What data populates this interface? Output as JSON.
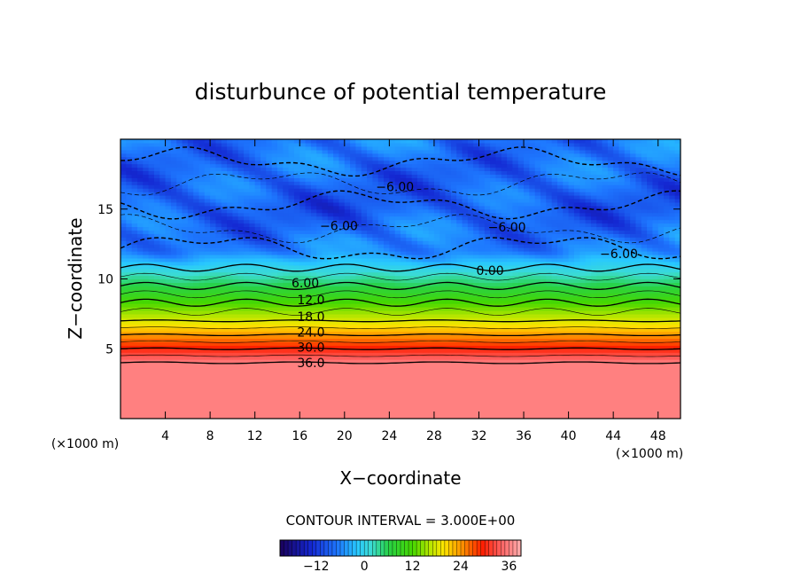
{
  "chart_data": {
    "type": "heatmap",
    "title": "disturbunce of potential temperature",
    "xlabel": "X−coordinate",
    "ylabel": "Z−coordinate",
    "x_unit": "(×1000 m)",
    "y_unit": "(×1000 m)",
    "xlim": [
      0,
      50
    ],
    "ylim": [
      0,
      20
    ],
    "x_ticks": [
      4,
      8,
      12,
      16,
      20,
      24,
      28,
      32,
      36,
      40,
      44,
      48
    ],
    "y_ticks": [
      5,
      10,
      15
    ],
    "contour_interval_text": "CONTOUR INTERVAL = 3.000E+00",
    "contour_interval": 3,
    "contour_labels": [
      {
        "text": "−6.00",
        "x": 24.5,
        "z": 16.6
      },
      {
        "text": "−6.00",
        "x": 19.5,
        "z": 13.8
      },
      {
        "text": "−6.00",
        "x": 34.5,
        "z": 13.7
      },
      {
        "text": "−6.00",
        "x": 44.5,
        "z": 11.8
      },
      {
        "text": "0.00",
        "x": 33.0,
        "z": 10.6
      },
      {
        "text": "6.00",
        "x": 16.5,
        "z": 9.7
      },
      {
        "text": "12.0",
        "x": 17.0,
        "z": 8.5
      },
      {
        "text": "18.0",
        "x": 17.0,
        "z": 7.3
      },
      {
        "text": "24.0",
        "x": 17.0,
        "z": 6.2
      },
      {
        "text": "30.0",
        "x": 17.0,
        "z": 5.1
      },
      {
        "text": "36.0",
        "x": 17.0,
        "z": 4.0
      }
    ],
    "colorbar": {
      "min": -21,
      "max": 39,
      "ticks": [
        -12,
        0,
        12,
        24,
        36
      ]
    },
    "field_profile": [
      {
        "z": 0,
        "value": 36
      },
      {
        "z": 4,
        "value": 36
      },
      {
        "z": 5,
        "value": 30
      },
      {
        "z": 6,
        "value": 24
      },
      {
        "z": 7,
        "value": 18
      },
      {
        "z": 8.3,
        "value": 12
      },
      {
        "z": 9.5,
        "value": 6
      },
      {
        "z": 10.8,
        "value": 0
      },
      {
        "z": 12,
        "value": -6
      },
      {
        "z": 15,
        "value": -9
      },
      {
        "z": 20,
        "value": -7
      }
    ]
  }
}
